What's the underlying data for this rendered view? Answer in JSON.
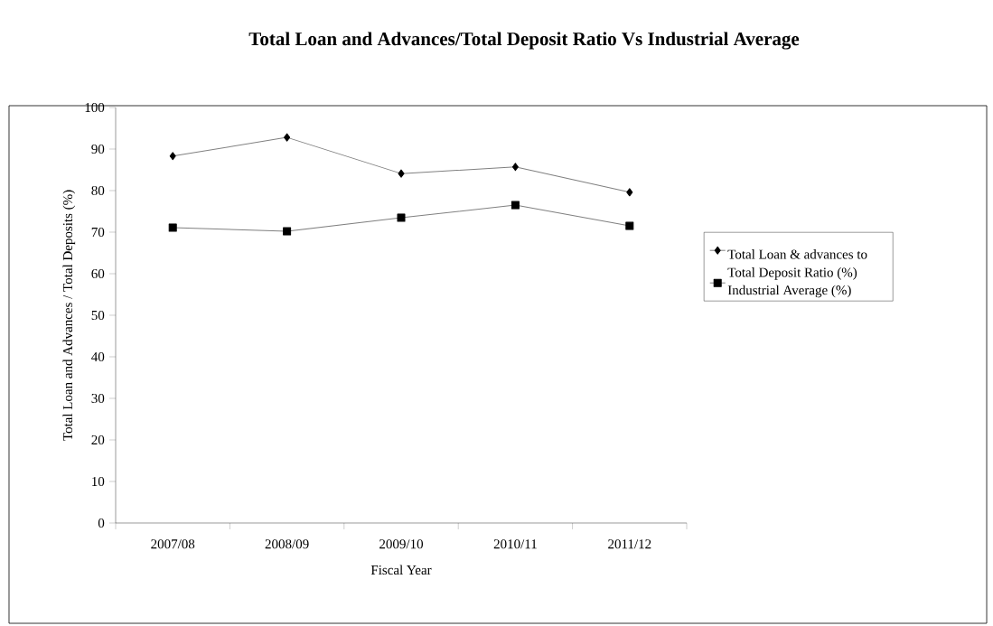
{
  "chart_data": {
    "type": "line",
    "title": "Total Loan and Advances/Total Deposit Ratio Vs Industrial Average",
    "xlabel": "Fiscal Year",
    "ylabel": "Total Loan and Advances / Total Deposits (%)",
    "categories": [
      "2007/08",
      "2008/09",
      "2009/10",
      "2010/11",
      "2011/12"
    ],
    "series": [
      {
        "name": "Total Loan & advances to Total Deposit Ratio (%)",
        "color": "#808080",
        "marker": "diamond",
        "values": [
          88.3,
          92.8,
          84.1,
          85.7,
          79.6
        ]
      },
      {
        "name": "Industrial Average (%)",
        "color": "#808080",
        "marker": "square",
        "values": [
          71.1,
          70.2,
          73.5,
          76.5,
          71.5
        ]
      }
    ],
    "ylim": [
      0,
      100
    ],
    "yticks": [
      0,
      10,
      20,
      30,
      40,
      50,
      60,
      70,
      80,
      90,
      100
    ],
    "grid": false,
    "legend": "right",
    "line_style": "solid"
  }
}
